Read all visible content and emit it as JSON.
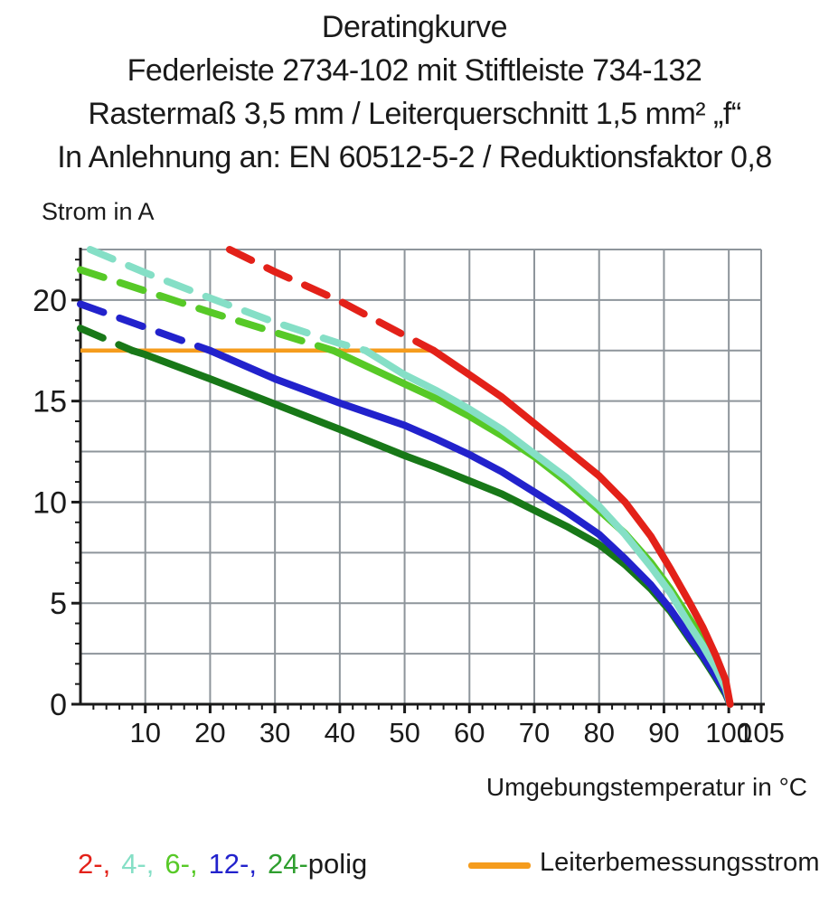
{
  "title": {
    "line1": "Deratingkurve",
    "line2": "Federleiste 2734-102 mit Stiftleiste 734-132",
    "line3": "Rastermaß 3,5 mm / Leiterquerschnitt 1,5 mm² „f“",
    "line4": "In Anlehnung an: EN 60512-5-2 / Reduktionsfaktor 0,8"
  },
  "axes": {
    "y_label": "Strom in A",
    "x_label": "Umgebungstemperatur in °C"
  },
  "chart_data": {
    "type": "line",
    "title": "Deratingkurve",
    "xlabel": "Umgebungstemperatur in °C",
    "ylabel": "Strom in A",
    "x_range": [
      0,
      105
    ],
    "y_range": [
      0,
      22.5
    ],
    "x_major_ticks": [
      10,
      20,
      30,
      40,
      50,
      60,
      70,
      80,
      90,
      100,
      105
    ],
    "y_major_ticks": [
      0,
      5,
      10,
      15,
      20
    ],
    "x_grid_step": 10,
    "y_grid_step": 2.5,
    "x_minor_tick_step": 2,
    "y_minor_tick_step": 1,
    "grid": true,
    "colors": {
      "grid": "#8E959B",
      "axis": "#1a1a1a",
      "tick_text": "#1a1a1a"
    },
    "rated_current": {
      "label": "Leiterbemessungsstrom",
      "value_a": 17.5,
      "x_start": 0,
      "x_end": 54.5,
      "color": "#F59C1D"
    },
    "series": [
      {
        "name": "24-polig",
        "color": "#187818",
        "dashed": [
          [
            0,
            18.6
          ],
          [
            8,
            17.5
          ]
        ],
        "solid": [
          [
            8,
            17.5
          ],
          [
            10,
            17.3
          ],
          [
            20,
            16.1
          ],
          [
            30,
            14.85
          ],
          [
            40,
            13.6
          ],
          [
            50,
            12.3
          ],
          [
            55,
            11.7
          ],
          [
            60,
            11.05
          ],
          [
            65,
            10.4
          ],
          [
            70,
            9.6
          ],
          [
            75,
            8.8
          ],
          [
            80,
            7.9
          ],
          [
            84,
            6.9
          ],
          [
            88,
            5.7
          ],
          [
            91,
            4.6
          ],
          [
            94,
            3.2
          ],
          [
            96,
            2.3
          ],
          [
            98,
            1.3
          ],
          [
            99.5,
            0.5
          ],
          [
            100.2,
            0
          ]
        ]
      },
      {
        "name": "12-polig",
        "color": "#2222CC",
        "dashed": [
          [
            0,
            19.8
          ],
          [
            10,
            18.65
          ],
          [
            20,
            17.5
          ]
        ],
        "solid": [
          [
            20,
            17.5
          ],
          [
            30,
            16.1
          ],
          [
            40,
            14.9
          ],
          [
            50,
            13.8
          ],
          [
            55,
            13.1
          ],
          [
            60,
            12.35
          ],
          [
            65,
            11.5
          ],
          [
            70,
            10.5
          ],
          [
            75,
            9.5
          ],
          [
            80,
            8.4
          ],
          [
            84,
            7.2
          ],
          [
            88,
            5.9
          ],
          [
            91,
            4.7
          ],
          [
            94,
            3.3
          ],
          [
            96,
            2.4
          ],
          [
            98,
            1.4
          ],
          [
            99.5,
            0.6
          ],
          [
            100.2,
            0
          ]
        ]
      },
      {
        "name": "6-polig",
        "color": "#57C927",
        "dashed": [
          [
            0,
            21.5
          ],
          [
            10,
            20.45
          ],
          [
            20,
            19.4
          ],
          [
            30,
            18.4
          ],
          [
            39,
            17.5
          ]
        ],
        "solid": [
          [
            39,
            17.5
          ],
          [
            50,
            15.85
          ],
          [
            55,
            15.1
          ],
          [
            60,
            14.25
          ],
          [
            65,
            13.3
          ],
          [
            70,
            12.25
          ],
          [
            75,
            11.0
          ],
          [
            80,
            9.6
          ],
          [
            84,
            8.45
          ],
          [
            88,
            7.0
          ],
          [
            91,
            5.7
          ],
          [
            94,
            4.2
          ],
          [
            96,
            3.2
          ],
          [
            98,
            2.0
          ],
          [
            99.5,
            0.9
          ],
          [
            100.2,
            0
          ]
        ]
      },
      {
        "name": "4-polig",
        "color": "#85DFC6",
        "dashed": [
          [
            1.5,
            22.5
          ],
          [
            10,
            21.35
          ],
          [
            20,
            20.1
          ],
          [
            30,
            18.9
          ],
          [
            40,
            17.85
          ],
          [
            44,
            17.5
          ]
        ],
        "solid": [
          [
            44,
            17.5
          ],
          [
            50,
            16.3
          ],
          [
            55,
            15.5
          ],
          [
            60,
            14.6
          ],
          [
            65,
            13.6
          ],
          [
            70,
            12.4
          ],
          [
            75,
            11.2
          ],
          [
            80,
            9.8
          ],
          [
            84,
            8.4
          ],
          [
            88,
            6.8
          ],
          [
            91,
            5.5
          ],
          [
            94,
            3.9
          ],
          [
            96,
            2.9
          ],
          [
            98,
            1.8
          ],
          [
            99.5,
            0.8
          ],
          [
            100.2,
            0
          ]
        ]
      },
      {
        "name": "2-polig",
        "color": "#E32119",
        "dashed": [
          [
            23,
            22.5
          ],
          [
            30,
            21.4
          ],
          [
            40,
            19.95
          ],
          [
            50,
            18.25
          ],
          [
            54.5,
            17.5
          ]
        ],
        "solid": [
          [
            54.5,
            17.5
          ],
          [
            60,
            16.3
          ],
          [
            65,
            15.2
          ],
          [
            70,
            13.9
          ],
          [
            75,
            12.6
          ],
          [
            80,
            11.3
          ],
          [
            84,
            10.0
          ],
          [
            88,
            8.3
          ],
          [
            91,
            6.7
          ],
          [
            94,
            5.0
          ],
          [
            96,
            3.8
          ],
          [
            98,
            2.4
          ],
          [
            99.5,
            1.2
          ],
          [
            100.2,
            0
          ]
        ]
      }
    ]
  },
  "legend": {
    "pole_entries": [
      {
        "label": "2-,",
        "color": "#E32119"
      },
      {
        "label": "4-,",
        "color": "#85DFC6"
      },
      {
        "label": "6-,",
        "color": "#57C927"
      },
      {
        "label": "12-,",
        "color": "#2222CC"
      },
      {
        "label": "24-",
        "color": "#2E9E2E"
      }
    ],
    "pole_suffix": "polig",
    "rated_label": "Leiterbemessungsstrom"
  }
}
